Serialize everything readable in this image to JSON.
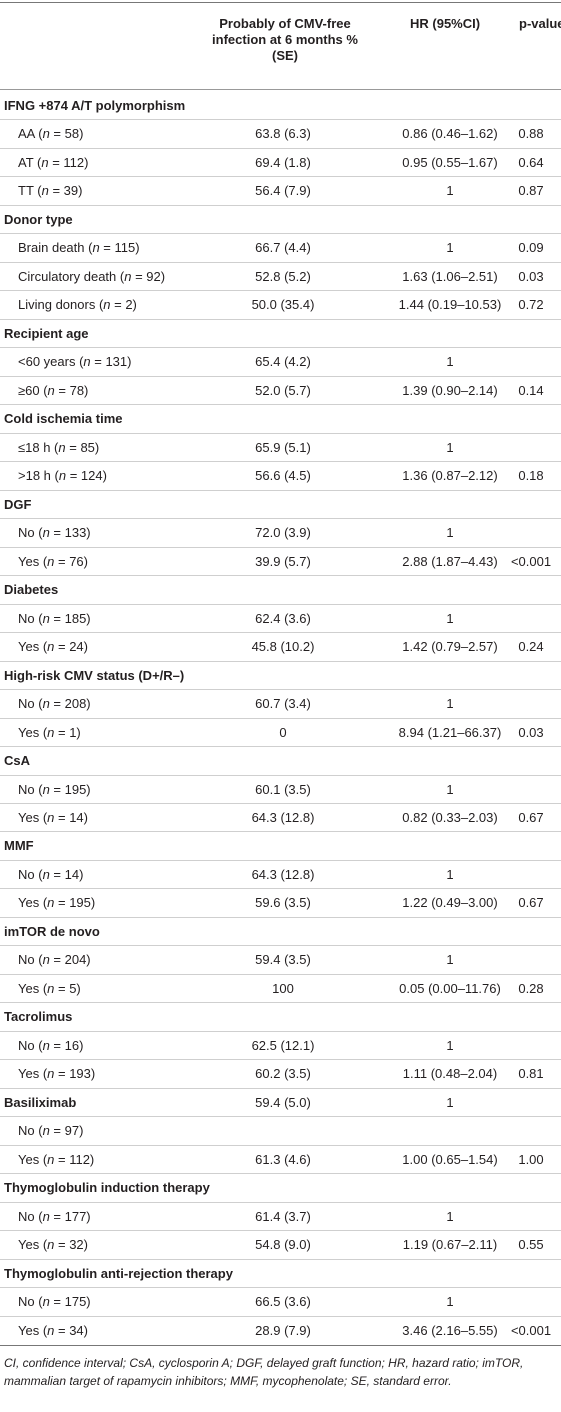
{
  "table": {
    "header": [
      "Probably of CMV-free infection at 6 months % (SE)",
      "HR (95%CI)",
      "p-value"
    ],
    "groups": [
      {
        "title": "IFNG +874 A/T polymorphism",
        "rows": [
          [
            "AA (n = 58)",
            "63.8 (6.3)",
            "0.86 (0.46–1.62)",
            "0.88"
          ],
          [
            "AT (n = 112)",
            "69.4 (1.8)",
            "0.95 (0.55–1.67)",
            "0.64"
          ],
          [
            "TT (n = 39)",
            "56.4 (7.9)",
            "1",
            "0.87"
          ]
        ]
      },
      {
        "title": "Donor type",
        "rows": [
          [
            "Brain death (n = 115)",
            "66.7 (4.4)",
            "1",
            "0.09"
          ],
          [
            "Circulatory death (n = 92)",
            "52.8 (5.2)",
            "1.63 (1.06–2.51)",
            "0.03"
          ],
          [
            "Living donors (n = 2)",
            "50.0 (35.4)",
            "1.44 (0.19–10.53)",
            "0.72"
          ]
        ]
      },
      {
        "title": "Recipient age",
        "rows": [
          [
            "<60 years (n = 131)",
            "65.4 (4.2)",
            "1"
          ],
          [
            "≥60 (n = 78)",
            "52.0 (5.7)",
            "1.39 (0.90–2.14)",
            "0.14"
          ]
        ]
      },
      {
        "title": "Cold ischemia time",
        "rows": [
          [
            "≤18 h (n = 85)",
            "65.9 (5.1)",
            "1"
          ],
          [
            ">18 h (n = 124)",
            "56.6 (4.5)",
            "1.36 (0.87–2.12)",
            "0.18"
          ]
        ]
      },
      {
        "title": "DGF",
        "rows": [
          [
            "No (n = 133)",
            "72.0 (3.9)",
            "1"
          ],
          [
            "Yes (n = 76)",
            "39.9 (5.7)",
            "2.88 (1.87–4.43)",
            "<0.001"
          ]
        ]
      },
      {
        "title": "Diabetes",
        "rows": [
          [
            "No (n = 185)",
            "62.4 (3.6)",
            "1"
          ],
          [
            "Yes (n = 24)",
            "45.8 (10.2)",
            "1.42 (0.79–2.57)",
            "0.24"
          ]
        ]
      },
      {
        "title": "High-risk CMV status (D+/R–)",
        "rows": [
          [
            "No (n = 208)",
            "60.7 (3.4)",
            "1"
          ],
          [
            "Yes (n = 1)",
            "0",
            "8.94 (1.21–66.37)",
            "0.03"
          ]
        ]
      },
      {
        "title": "CsA",
        "rows": [
          [
            "No (n = 195)",
            "60.1 (3.5)",
            "1"
          ],
          [
            "Yes (n = 14)",
            "64.3 (12.8)",
            "0.82 (0.33–2.03)",
            "0.67"
          ]
        ]
      },
      {
        "title": "MMF",
        "rows": [
          [
            "No (n = 14)",
            "64.3 (12.8)",
            "1"
          ],
          [
            "Yes (n = 195)",
            "59.6 (3.5)",
            "1.22 (0.49–3.00)",
            "0.67"
          ]
        ]
      },
      {
        "title": "imTOR de novo",
        "rows": [
          [
            "No (n = 204)",
            "59.4 (3.5)",
            "1"
          ],
          [
            "Yes (n = 5)",
            "100",
            "0.05 (0.00–11.76)",
            "0.28"
          ]
        ]
      },
      {
        "title": "Tacrolimus",
        "rows": [
          [
            "No (n = 16)",
            "62.5 (12.1)",
            "1"
          ],
          [
            "Yes (n = 193)",
            "60.2 (3.5)",
            "1.11 (0.48–2.04)",
            "0.81"
          ]
        ]
      },
      {
        "title": "Basiliximab",
        "values": [
          "59.4 (5.0)",
          "1"
        ],
        "rows": [
          [
            "No (n = 97)"
          ],
          [
            "Yes (n = 112)",
            "61.3 (4.6)",
            "1.00 (0.65–1.54)",
            "1.00"
          ]
        ]
      },
      {
        "title": "Thymoglobulin induction therapy",
        "rows": [
          [
            "No (n = 177)",
            "61.4 (3.7)",
            "1"
          ],
          [
            "Yes (n = 32)",
            "54.8 (9.0)",
            "1.19 (0.67–2.11)",
            "0.55"
          ]
        ]
      },
      {
        "title": "Thymoglobulin anti-rejection therapy",
        "rows": [
          [
            "No (n = 175)",
            "66.5 (3.6)",
            "1"
          ],
          [
            "Yes (n = 34)",
            "28.9 (7.9)",
            "3.46 (2.16–5.55)",
            "<0.001"
          ]
        ]
      }
    ]
  },
  "footnote": "CI, confidence interval; CsA, cyclosporin A; DGF, delayed graft function; HR, hazard ratio; imTOR, mammalian target of rapamycin inhibitors; MMF, mycophenolate; SE, standard error."
}
